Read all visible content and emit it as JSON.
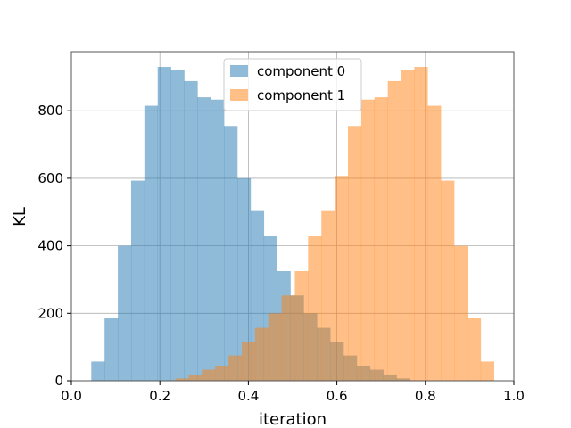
{
  "chart_data": {
    "type": "histogram",
    "title": "",
    "xlabel": "iteration",
    "ylabel": "KL",
    "xlim": [
      0.0,
      1.0
    ],
    "ylim": [
      0,
      975
    ],
    "xticks": [
      0.0,
      0.2,
      0.4,
      0.6,
      0.8,
      1.0
    ],
    "xtick_labels": [
      "0.0",
      "0.2",
      "0.4",
      "0.6",
      "0.8",
      "1.0"
    ],
    "yticks": [
      0,
      200,
      400,
      600,
      800
    ],
    "ytick_labels": [
      "0",
      "200",
      "400",
      "600",
      "800"
    ],
    "grid": true,
    "legend_position": "top-center",
    "series": [
      {
        "name": "component 0",
        "color": "#1f77b4",
        "opacity": 0.5,
        "bins": [
          {
            "x0": 0.045,
            "x1": 0.075,
            "y": 57
          },
          {
            "x0": 0.075,
            "x1": 0.105,
            "y": 185
          },
          {
            "x0": 0.105,
            "x1": 0.135,
            "y": 400
          },
          {
            "x0": 0.135,
            "x1": 0.165,
            "y": 593
          },
          {
            "x0": 0.165,
            "x1": 0.195,
            "y": 815
          },
          {
            "x0": 0.195,
            "x1": 0.225,
            "y": 930
          },
          {
            "x0": 0.225,
            "x1": 0.255,
            "y": 922
          },
          {
            "x0": 0.255,
            "x1": 0.285,
            "y": 888
          },
          {
            "x0": 0.285,
            "x1": 0.315,
            "y": 840
          },
          {
            "x0": 0.315,
            "x1": 0.345,
            "y": 833
          },
          {
            "x0": 0.345,
            "x1": 0.375,
            "y": 755
          },
          {
            "x0": 0.375,
            "x1": 0.405,
            "y": 600
          },
          {
            "x0": 0.405,
            "x1": 0.435,
            "y": 503
          },
          {
            "x0": 0.435,
            "x1": 0.465,
            "y": 428
          },
          {
            "x0": 0.465,
            "x1": 0.495,
            "y": 325
          },
          {
            "x0": 0.495,
            "x1": 0.525,
            "y": 253
          },
          {
            "x0": 0.525,
            "x1": 0.555,
            "y": 200
          },
          {
            "x0": 0.555,
            "x1": 0.585,
            "y": 157
          },
          {
            "x0": 0.585,
            "x1": 0.615,
            "y": 115
          },
          {
            "x0": 0.615,
            "x1": 0.645,
            "y": 75
          },
          {
            "x0": 0.645,
            "x1": 0.675,
            "y": 45
          },
          {
            "x0": 0.675,
            "x1": 0.705,
            "y": 33
          },
          {
            "x0": 0.705,
            "x1": 0.735,
            "y": 16
          },
          {
            "x0": 0.735,
            "x1": 0.765,
            "y": 7
          }
        ]
      },
      {
        "name": "component 1",
        "color": "#ff7f0e",
        "opacity": 0.5,
        "bins": [
          {
            "x0": 0.235,
            "x1": 0.265,
            "y": 7
          },
          {
            "x0": 0.265,
            "x1": 0.295,
            "y": 16
          },
          {
            "x0": 0.295,
            "x1": 0.325,
            "y": 33
          },
          {
            "x0": 0.325,
            "x1": 0.355,
            "y": 45
          },
          {
            "x0": 0.355,
            "x1": 0.385,
            "y": 75
          },
          {
            "x0": 0.385,
            "x1": 0.415,
            "y": 115
          },
          {
            "x0": 0.415,
            "x1": 0.445,
            "y": 157
          },
          {
            "x0": 0.445,
            "x1": 0.475,
            "y": 200
          },
          {
            "x0": 0.475,
            "x1": 0.505,
            "y": 253
          },
          {
            "x0": 0.505,
            "x1": 0.535,
            "y": 325
          },
          {
            "x0": 0.535,
            "x1": 0.565,
            "y": 428
          },
          {
            "x0": 0.565,
            "x1": 0.595,
            "y": 503
          },
          {
            "x0": 0.595,
            "x1": 0.625,
            "y": 607
          },
          {
            "x0": 0.625,
            "x1": 0.655,
            "y": 755
          },
          {
            "x0": 0.655,
            "x1": 0.685,
            "y": 833
          },
          {
            "x0": 0.685,
            "x1": 0.715,
            "y": 840
          },
          {
            "x0": 0.715,
            "x1": 0.745,
            "y": 888
          },
          {
            "x0": 0.745,
            "x1": 0.775,
            "y": 922
          },
          {
            "x0": 0.775,
            "x1": 0.805,
            "y": 930
          },
          {
            "x0": 0.805,
            "x1": 0.835,
            "y": 815
          },
          {
            "x0": 0.835,
            "x1": 0.865,
            "y": 593
          },
          {
            "x0": 0.865,
            "x1": 0.895,
            "y": 400
          },
          {
            "x0": 0.895,
            "x1": 0.925,
            "y": 185
          },
          {
            "x0": 0.925,
            "x1": 0.955,
            "y": 57
          }
        ]
      }
    ]
  }
}
